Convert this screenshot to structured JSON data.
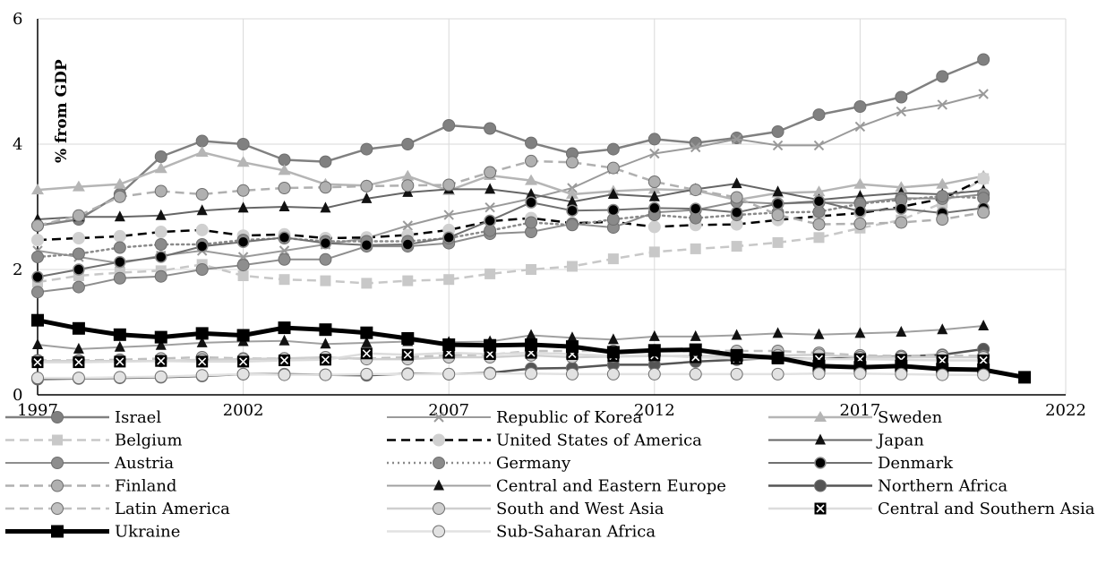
{
  "chart_data": {
    "type": "line",
    "title": "",
    "xlabel": "",
    "ylabel": "% from GDP",
    "xlim": [
      1997,
      2022
    ],
    "ylim": [
      0,
      6
    ],
    "x_ticks": [
      1997,
      2002,
      2007,
      2012,
      2017,
      2022
    ],
    "y_ticks": [
      0,
      2,
      4,
      6
    ],
    "grid": "horizontal",
    "legend_position": "bottom",
    "x": [
      1997,
      1998,
      1999,
      2000,
      2001,
      2002,
      2003,
      2004,
      2005,
      2006,
      2007,
      2008,
      2009,
      2010,
      2011,
      2012,
      2013,
      2014,
      2015,
      2016,
      2017,
      2018,
      2019,
      2020
    ],
    "series": [
      {
        "name": "Israel",
        "color": "#808080",
        "marker": "circle",
        "dash": "",
        "width": 2.5,
        "values": [
          2.7,
          2.8,
          3.2,
          3.8,
          4.05,
          4.0,
          3.75,
          3.72,
          3.92,
          4.0,
          4.3,
          4.25,
          4.02,
          3.85,
          3.92,
          4.08,
          4.02,
          4.1,
          4.2,
          4.47,
          4.6,
          4.75,
          5.08,
          5.35
        ]
      },
      {
        "name": "Republic of Korea",
        "color": "#9a9a9a",
        "marker": "x",
        "dash": "",
        "width": 2,
        "values": [
          2.3,
          2.2,
          2.1,
          2.22,
          2.3,
          2.2,
          2.3,
          2.4,
          2.5,
          2.7,
          2.87,
          2.99,
          3.13,
          3.3,
          3.6,
          3.85,
          3.95,
          4.08,
          3.98,
          3.98,
          4.28,
          4.52,
          4.63,
          4.8
        ]
      },
      {
        "name": "Sweden",
        "color": "#b5b5b5",
        "marker": "triangle",
        "dash": "",
        "width": 2.5,
        "values": [
          3.27,
          3.32,
          3.36,
          3.61,
          3.87,
          3.71,
          3.58,
          3.36,
          3.34,
          3.49,
          3.26,
          3.5,
          3.42,
          3.2,
          3.25,
          3.28,
          3.26,
          3.11,
          3.22,
          3.24,
          3.36,
          3.31,
          3.36,
          3.49
        ]
      },
      {
        "name": "Belgium",
        "color": "#c8c8c8",
        "marker": "square",
        "dash": "10,6",
        "width": 2.5,
        "values": [
          1.8,
          1.9,
          1.95,
          1.98,
          2.08,
          1.9,
          1.84,
          1.82,
          1.78,
          1.82,
          1.84,
          1.93,
          2.0,
          2.05,
          2.17,
          2.28,
          2.33,
          2.37,
          2.43,
          2.51,
          2.66,
          2.79,
          3.06,
          3.45
        ]
      },
      {
        "name": "United States of America",
        "color": "#000000",
        "marker": "circle-light",
        "dash": "10,6",
        "width": 2.5,
        "values": [
          2.47,
          2.5,
          2.53,
          2.6,
          2.63,
          2.54,
          2.56,
          2.5,
          2.51,
          2.55,
          2.63,
          2.77,
          2.82,
          2.74,
          2.76,
          2.68,
          2.71,
          2.72,
          2.79,
          2.85,
          2.9,
          3.0,
          3.13,
          3.45
        ]
      },
      {
        "name": "Japan",
        "color": "#666666",
        "marker": "triangle-dark",
        "dash": "",
        "width": 2,
        "values": [
          2.8,
          2.84,
          2.84,
          2.86,
          2.94,
          2.98,
          3.0,
          2.98,
          3.13,
          3.23,
          3.28,
          3.28,
          3.2,
          3.08,
          3.2,
          3.16,
          3.28,
          3.37,
          3.24,
          3.11,
          3.17,
          3.22,
          3.2,
          3.26
        ]
      },
      {
        "name": "Austria",
        "color": "#8e8e8e",
        "marker": "circle",
        "dash": "",
        "width": 2,
        "values": [
          1.64,
          1.72,
          1.86,
          1.89,
          2.0,
          2.07,
          2.16,
          2.16,
          2.37,
          2.37,
          2.42,
          2.57,
          2.6,
          2.73,
          2.67,
          2.91,
          2.95,
          3.08,
          3.05,
          3.07,
          3.06,
          3.14,
          3.13,
          3.2
        ]
      },
      {
        "name": "Germany",
        "color": "#8a8a8a",
        "marker": "circle",
        "dash": "2,4",
        "width": 2.5,
        "values": [
          2.2,
          2.25,
          2.35,
          2.4,
          2.4,
          2.47,
          2.5,
          2.45,
          2.45,
          2.45,
          2.5,
          2.62,
          2.75,
          2.71,
          2.8,
          2.87,
          2.82,
          2.87,
          2.91,
          2.92,
          3.05,
          3.11,
          3.17,
          3.14
        ]
      },
      {
        "name": "Denmark",
        "color": "#707070",
        "marker": "circle-dark",
        "dash": "",
        "width": 2,
        "values": [
          1.88,
          2.0,
          2.12,
          2.2,
          2.37,
          2.44,
          2.51,
          2.42,
          2.39,
          2.4,
          2.51,
          2.78,
          3.07,
          2.94,
          2.95,
          2.98,
          2.97,
          2.91,
          3.05,
          3.09,
          2.93,
          2.97,
          2.9,
          2.98
        ]
      },
      {
        "name": "Finland",
        "color": "#b0b0b0",
        "marker": "circle",
        "dash": "10,6",
        "width": 2.5,
        "values": [
          2.7,
          2.86,
          3.16,
          3.25,
          3.2,
          3.26,
          3.3,
          3.31,
          3.33,
          3.34,
          3.35,
          3.55,
          3.73,
          3.71,
          3.62,
          3.4,
          3.27,
          3.15,
          2.87,
          2.72,
          2.73,
          2.75,
          2.8,
          2.91
        ]
      },
      {
        "name": "Central and Eastern Europe",
        "color": "#a0a0a0",
        "marker": "triangle-dark",
        "dash": "",
        "width": 2,
        "values": [
          0.8,
          0.73,
          0.76,
          0.79,
          0.83,
          0.85,
          0.86,
          0.81,
          0.83,
          0.85,
          0.84,
          0.85,
          0.95,
          0.91,
          0.88,
          0.93,
          0.93,
          0.95,
          0.98,
          0.96,
          0.98,
          1.0,
          1.04,
          1.1
        ]
      },
      {
        "name": "Northern Africa",
        "color": "#555555",
        "marker": "circle",
        "dash": "",
        "width": 2.5,
        "values": [
          0.25,
          0.26,
          0.27,
          0.28,
          0.3,
          0.33,
          0.33,
          0.32,
          0.31,
          0.34,
          0.33,
          0.35,
          0.42,
          0.43,
          0.48,
          0.48,
          0.53,
          0.56,
          0.59,
          0.57,
          0.6,
          0.61,
          0.64,
          0.73
        ]
      },
      {
        "name": "Latin America",
        "color": "#c0c0c0",
        "marker": "circle",
        "dash": "10,6",
        "width": 2.5,
        "values": [
          0.55,
          0.55,
          0.56,
          0.58,
          0.6,
          0.58,
          0.58,
          0.58,
          0.58,
          0.6,
          0.63,
          0.64,
          0.7,
          0.7,
          0.7,
          0.71,
          0.71,
          0.7,
          0.7,
          0.67,
          0.63,
          0.62,
          0.63,
          0.62
        ]
      },
      {
        "name": "South and West Asia",
        "color": "#cfcfcf",
        "marker": "circle",
        "dash": "",
        "width": 2.5,
        "values": [
          0.54,
          0.54,
          0.54,
          0.54,
          0.56,
          0.57,
          0.58,
          0.6,
          0.57,
          0.57,
          0.6,
          0.6,
          0.63,
          0.6,
          0.61,
          0.62,
          0.62,
          0.62,
          0.63,
          0.64,
          0.6,
          0.6,
          0.6,
          0.6
        ]
      },
      {
        "name": "Central and Southern Asia",
        "color": "#dcdcdc",
        "marker": "boxx",
        "dash": "",
        "width": 2.5,
        "values": [
          0.52,
          0.52,
          0.53,
          0.54,
          0.53,
          0.53,
          0.55,
          0.56,
          0.66,
          0.64,
          0.67,
          0.65,
          0.67,
          0.65,
          0.62,
          0.63,
          0.6,
          0.58,
          0.58,
          0.57,
          0.57,
          0.56,
          0.55,
          0.55
        ]
      },
      {
        "name": "Ukraine",
        "color": "#000000",
        "marker": "square-dark",
        "dash": "",
        "width": 5,
        "x": [
          1997,
          1998,
          1999,
          2000,
          2001,
          2002,
          2003,
          2004,
          2005,
          2006,
          2007,
          2008,
          2009,
          2010,
          2011,
          2012,
          2013,
          2014,
          2015,
          2016,
          2017,
          2018,
          2019,
          2020,
          2021
        ],
        "values": [
          1.19,
          1.06,
          0.96,
          0.92,
          0.98,
          0.95,
          1.07,
          1.04,
          0.99,
          0.9,
          0.8,
          0.79,
          0.8,
          0.77,
          0.68,
          0.71,
          0.72,
          0.63,
          0.59,
          0.46,
          0.44,
          0.46,
          0.41,
          0.4,
          0.28
        ]
      },
      {
        "name": "Sub-Saharan Africa",
        "color": "#e2e2e2",
        "marker": "circle",
        "dash": "",
        "width": 2.5,
        "values": [
          0.27,
          0.27,
          0.28,
          0.29,
          0.31,
          0.33,
          0.32,
          0.32,
          0.33,
          0.33,
          0.33,
          0.34,
          0.34,
          0.33,
          0.33,
          0.33,
          0.33,
          0.33,
          0.33,
          0.34,
          0.34,
          0.33,
          0.32,
          0.32
        ]
      }
    ]
  }
}
